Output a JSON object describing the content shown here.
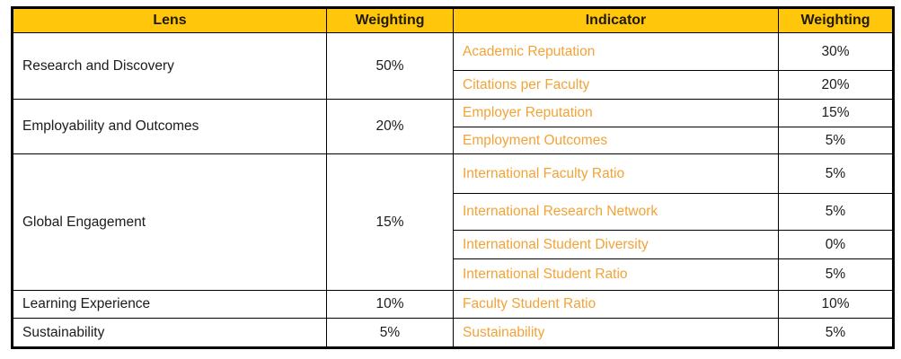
{
  "chart_data": {
    "type": "table",
    "columns": [
      "Lens",
      "Weighting",
      "Indicator",
      "Weighting"
    ],
    "groups": [
      {
        "lens": "Research and Discovery",
        "weighting": "50%",
        "indicators": [
          {
            "name": "Academic Reputation",
            "weighting": "30%"
          },
          {
            "name": "Citations per Faculty",
            "weighting": "20%"
          }
        ]
      },
      {
        "lens": "Employability and Outcomes",
        "weighting": "20%",
        "indicators": [
          {
            "name": "Employer Reputation",
            "weighting": "15%"
          },
          {
            "name": "Employment Outcomes",
            "weighting": "5%"
          }
        ]
      },
      {
        "lens": "Global Engagement",
        "weighting": "15%",
        "indicators": [
          {
            "name": "International Faculty Ratio",
            "weighting": "5%"
          },
          {
            "name": "International Research Network",
            "weighting": "5%"
          },
          {
            "name": "International Student Diversity",
            "weighting": "0%"
          },
          {
            "name": "International Student Ratio",
            "weighting": "5%"
          }
        ]
      },
      {
        "lens": "Learning Experience",
        "weighting": "10%",
        "indicators": [
          {
            "name": "Faculty Student Ratio",
            "weighting": "10%"
          }
        ]
      },
      {
        "lens": "Sustainability",
        "weighting": "5%",
        "indicators": [
          {
            "name": "Sustainability",
            "weighting": "5%"
          }
        ]
      }
    ]
  },
  "colors": {
    "header_bg": "#FFC60B",
    "header_text": "#201A00",
    "indicator_text": "#F2A338",
    "body_text": "#1B1B1B",
    "border": "#000000",
    "page_bg": "#FFFFFF"
  }
}
